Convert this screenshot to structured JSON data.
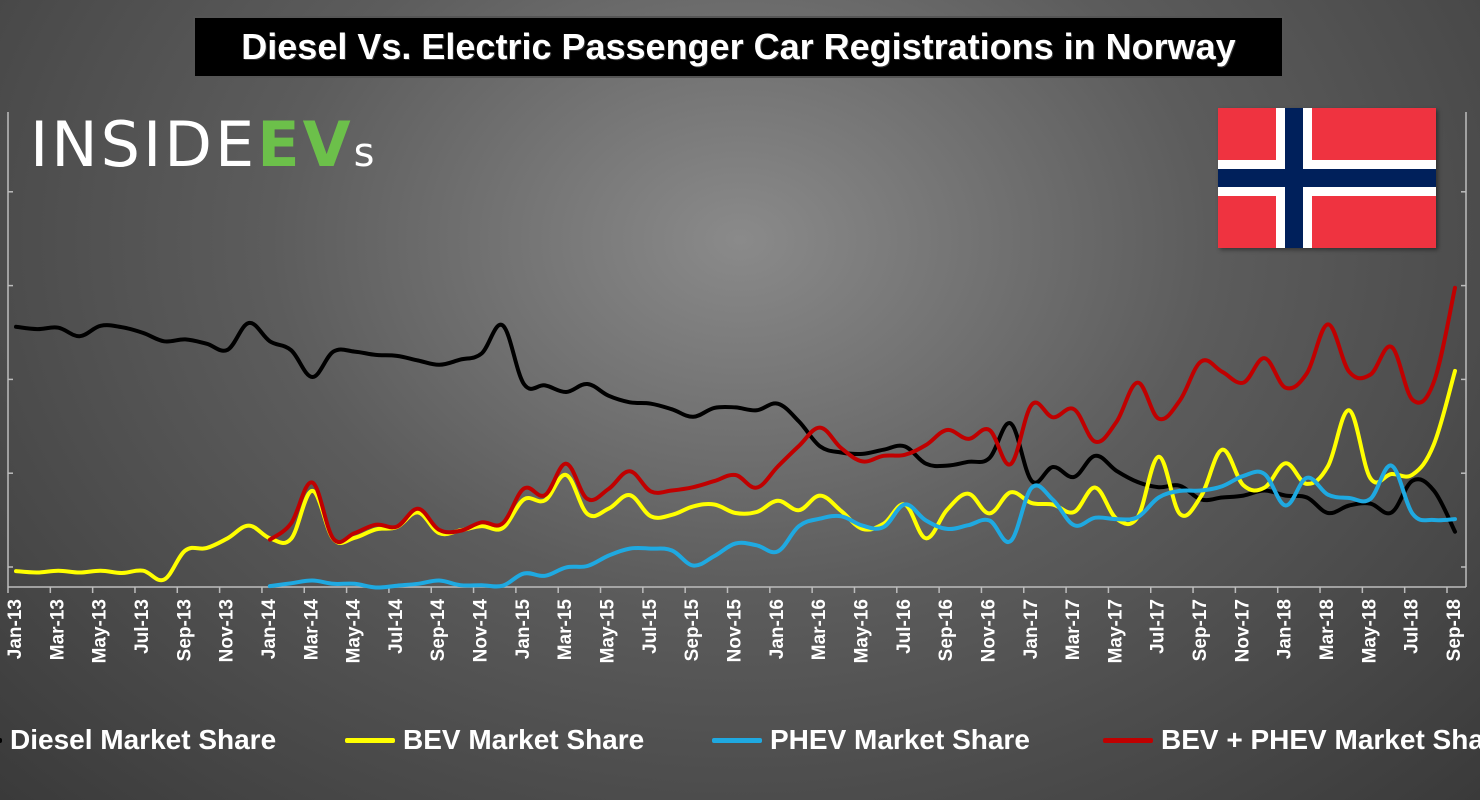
{
  "chart_data": {
    "type": "line",
    "title": "Diesel Vs. Electric Passenger Car Registrations in Norway",
    "logo_text": "INSIDEEVs",
    "categories": [
      "Jan-13",
      "Feb-13",
      "Mar-13",
      "Apr-13",
      "May-13",
      "Jun-13",
      "Jul-13",
      "Aug-13",
      "Sep-13",
      "Oct-13",
      "Nov-13",
      "Dec-13",
      "Jan-14",
      "Feb-14",
      "Mar-14",
      "Apr-14",
      "May-14",
      "Jun-14",
      "Jul-14",
      "Aug-14",
      "Sep-14",
      "Oct-14",
      "Nov-14",
      "Dec-14",
      "Jan-15",
      "Feb-15",
      "Mar-15",
      "Apr-15",
      "May-15",
      "Jun-15",
      "Jul-15",
      "Aug-15",
      "Sep-15",
      "Oct-15",
      "Nov-15",
      "Dec-15",
      "Jan-16",
      "Feb-16",
      "Mar-16",
      "Apr-16",
      "May-16",
      "Jun-16",
      "Jul-16",
      "Aug-16",
      "Sep-16",
      "Oct-16",
      "Nov-16",
      "Dec-16",
      "Jan-17",
      "Feb-17",
      "Mar-17",
      "Apr-17",
      "May-17",
      "Jun-17",
      "Jul-17",
      "Aug-17",
      "Sep-17",
      "Oct-17",
      "Nov-17",
      "Dec-17",
      "Jan-18",
      "Feb-18",
      "Mar-18",
      "Apr-18",
      "May-18",
      "Jun-18",
      "Jul-18",
      "Aug-18",
      "Sep-18"
    ],
    "x_tick_labels": [
      "Jan-13",
      "Mar-13",
      "May-13",
      "Jul-13",
      "Sep-13",
      "Nov-13",
      "Jan-14",
      "Mar-14",
      "May-14",
      "Jul-14",
      "Sep-14",
      "Nov-14",
      "Jan-15",
      "Mar-15",
      "May-15",
      "Jul-15",
      "Sep-15",
      "Nov-15",
      "Jan-16",
      "Mar-16",
      "May-16",
      "Jul-16",
      "Sep-16",
      "Nov-16",
      "Jan-17",
      "Mar-17",
      "May-17",
      "Jul-17",
      "Sep-17",
      "Nov-17",
      "Jan-18",
      "Mar-18",
      "May-18",
      "Jul-18",
      "Sep-18"
    ],
    "ylim": [
      0,
      100
    ],
    "grid": false,
    "legend_position": "bottom",
    "series": [
      {
        "name": "Diesel Market Share",
        "color": "#000000",
        "values": [
          52.5,
          52,
          52.3,
          50.5,
          52.7,
          52.4,
          51.2,
          49.4,
          49.8,
          48.9,
          47.6,
          53.3,
          49.4,
          47.5,
          41.8,
          47.2,
          47.2,
          46.5,
          46.3,
          45.3,
          44.4,
          45.5,
          46.8,
          52.8,
          40.3,
          40,
          38.6,
          40.3,
          37.8,
          36.4,
          36.1,
          34.9,
          33.3,
          35.2,
          35.3,
          34.7,
          36.1,
          32.3,
          27,
          25.7,
          25.4,
          26.3,
          27,
          23.3,
          22.9,
          23.7,
          24.5,
          31.9,
          19.6,
          22.6,
          20.5,
          25,
          21.8,
          19.4,
          18.3,
          18.6,
          15.7,
          16.1,
          16.5,
          17.6,
          16.5,
          16.1,
          12.8,
          14.4,
          14.8,
          12.9,
          19.7,
          17.6,
          8.8
        ]
      },
      {
        "name": "BEV Market Share",
        "color": "#ffff00",
        "values": [
          0.4,
          0.1,
          0.5,
          0.1,
          0.5,
          0,
          0.5,
          -1.4,
          4.8,
          5.3,
          7.4,
          10.1,
          7.4,
          7.3,
          17.5,
          7.2,
          7.5,
          9.3,
          9.8,
          12.9,
          8.5,
          9.1,
          10,
          9.6,
          15.7,
          15.5,
          20.9,
          12.6,
          13.7,
          16.6,
          12.1,
          12.4,
          14.2,
          14.6,
          12.8,
          13,
          15.4,
          13.4,
          16.5,
          13.2,
          9.4,
          10.5,
          14.6,
          7.4,
          13.5,
          16.9,
          12.7,
          17.2,
          14.9,
          14.6,
          13,
          18.2,
          11.6,
          11.9,
          24.8,
          12.6,
          16.4,
          26.3,
          18.7,
          18.2,
          23.4,
          19,
          22.8,
          34.7,
          20.2,
          21.1,
          21,
          27.4,
          43.1
        ]
      },
      {
        "name": "PHEV Market Share",
        "color": "#1fa9e1",
        "values": [
          null,
          null,
          null,
          null,
          null,
          null,
          null,
          null,
          null,
          null,
          null,
          null,
          -2.8,
          -2.2,
          -1.6,
          -2.3,
          -2.3,
          -3.1,
          -2.7,
          -2.3,
          -1.6,
          -2.6,
          -2.6,
          -2.7,
          -0.1,
          -0.6,
          1.2,
          1.5,
          3.7,
          5.2,
          5.2,
          4.8,
          1.6,
          3.6,
          6.3,
          5.9,
          4.6,
          10,
          11.6,
          12.1,
          10.1,
          9.8,
          14.6,
          11.2,
          9.4,
          10.2,
          11.2,
          6.8,
          18.2,
          15.6,
          10.2,
          11.8,
          11.5,
          11.9,
          16.1,
          17.5,
          17.6,
          18.5,
          20.7,
          21.1,
          14.4,
          20.3,
          16.7,
          16,
          15.8,
          22.9,
          12.6,
          11.3,
          11.5
        ]
      },
      {
        "name": "BEV + PHEV Market Share",
        "color": "#c00000",
        "values": [
          null,
          null,
          null,
          null,
          null,
          null,
          null,
          null,
          null,
          null,
          null,
          null,
          7.1,
          10.6,
          19.3,
          7.3,
          8.5,
          10.3,
          9.9,
          13.7,
          9.2,
          9,
          10.8,
          10.6,
          18,
          16.6,
          23.3,
          15.8,
          17.9,
          21.7,
          17.4,
          17.6,
          18.3,
          19.6,
          20.9,
          18.2,
          22.7,
          27.1,
          31,
          26.6,
          23.8,
          25,
          25.2,
          27.3,
          30.5,
          28.6,
          30.5,
          23.2,
          35.9,
          33.2,
          34.9,
          28,
          32.2,
          40.6,
          32.9,
          36.8,
          45.1,
          42.9,
          40.6,
          45.8,
          39.5,
          42.6,
          53,
          42.9,
          42.3,
          48.2,
          36.9,
          40.7,
          60.8
        ]
      }
    ]
  }
}
